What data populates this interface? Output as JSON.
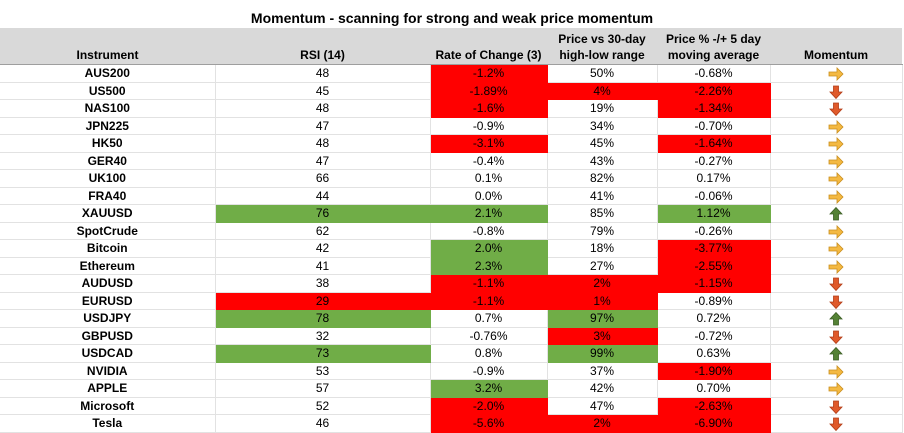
{
  "title": "Momentum - scanning for strong and weak price momentum",
  "headers": {
    "instrument": "Instrument",
    "rsi": "RSI (14)",
    "roc": "Rate of Change (3)",
    "range_l1": "Price vs 30-day",
    "range_l2": "high-low range",
    "ma_l1": "Price % -/+ 5 day",
    "ma_l2": "moving average",
    "momentum": "Momentum"
  },
  "colors": {
    "red": "#ff0000",
    "green": "#70ad47",
    "up_arrow": "#548235",
    "down_arrow": "#e05a2b",
    "right_arrow": "#f4b942"
  },
  "rows": [
    {
      "name": "AUS200",
      "rsi": "48",
      "roc": "-1.2%",
      "range": "50%",
      "ma": "-0.68%",
      "momentum": "right",
      "rsi_c": "",
      "roc_c": "red",
      "range_c": "",
      "ma_c": ""
    },
    {
      "name": "US500",
      "rsi": "45",
      "roc": "-1.89%",
      "range": "4%",
      "ma": "-2.26%",
      "momentum": "down",
      "rsi_c": "",
      "roc_c": "red",
      "range_c": "red",
      "ma_c": "red"
    },
    {
      "name": "NAS100",
      "rsi": "48",
      "roc": "-1.6%",
      "range": "19%",
      "ma": "-1.34%",
      "momentum": "down",
      "rsi_c": "",
      "roc_c": "red",
      "range_c": "",
      "ma_c": "red"
    },
    {
      "name": "JPN225",
      "rsi": "47",
      "roc": "-0.9%",
      "range": "34%",
      "ma": "-0.70%",
      "momentum": "right",
      "rsi_c": "",
      "roc_c": "",
      "range_c": "",
      "ma_c": ""
    },
    {
      "name": "HK50",
      "rsi": "48",
      "roc": "-3.1%",
      "range": "45%",
      "ma": "-1.64%",
      "momentum": "right",
      "rsi_c": "",
      "roc_c": "red",
      "range_c": "",
      "ma_c": "red"
    },
    {
      "name": "GER40",
      "rsi": "47",
      "roc": "-0.4%",
      "range": "43%",
      "ma": "-0.27%",
      "momentum": "right",
      "rsi_c": "",
      "roc_c": "",
      "range_c": "",
      "ma_c": ""
    },
    {
      "name": "UK100",
      "rsi": "66",
      "roc": "0.1%",
      "range": "82%",
      "ma": "0.17%",
      "momentum": "right",
      "rsi_c": "",
      "roc_c": "",
      "range_c": "",
      "ma_c": ""
    },
    {
      "name": "FRA40",
      "rsi": "44",
      "roc": "0.0%",
      "range": "41%",
      "ma": "-0.06%",
      "momentum": "right",
      "rsi_c": "",
      "roc_c": "",
      "range_c": "",
      "ma_c": ""
    },
    {
      "name": "XAUUSD",
      "rsi": "76",
      "roc": "2.1%",
      "range": "85%",
      "ma": "1.12%",
      "momentum": "up",
      "rsi_c": "green",
      "roc_c": "green",
      "range_c": "",
      "ma_c": "green"
    },
    {
      "name": "SpotCrude",
      "rsi": "62",
      "roc": "-0.8%",
      "range": "79%",
      "ma": "-0.26%",
      "momentum": "right",
      "rsi_c": "",
      "roc_c": "",
      "range_c": "",
      "ma_c": ""
    },
    {
      "name": "Bitcoin",
      "rsi": "42",
      "roc": "2.0%",
      "range": "18%",
      "ma": "-3.77%",
      "momentum": "right",
      "rsi_c": "",
      "roc_c": "green",
      "range_c": "",
      "ma_c": "red"
    },
    {
      "name": "Ethereum",
      "rsi": "41",
      "roc": "2.3%",
      "range": "27%",
      "ma": "-2.55%",
      "momentum": "right",
      "rsi_c": "",
      "roc_c": "green",
      "range_c": "",
      "ma_c": "red"
    },
    {
      "name": "AUDUSD",
      "rsi": "38",
      "roc": "-1.1%",
      "range": "2%",
      "ma": "-1.15%",
      "momentum": "down",
      "rsi_c": "",
      "roc_c": "red",
      "range_c": "red",
      "ma_c": "red"
    },
    {
      "name": "EURUSD",
      "rsi": "29",
      "roc": "-1.1%",
      "range": "1%",
      "ma": "-0.89%",
      "momentum": "down",
      "rsi_c": "red",
      "roc_c": "red",
      "range_c": "red",
      "ma_c": ""
    },
    {
      "name": "USDJPY",
      "rsi": "78",
      "roc": "0.7%",
      "range": "97%",
      "ma": "0.72%",
      "momentum": "up",
      "rsi_c": "green",
      "roc_c": "",
      "range_c": "green",
      "ma_c": ""
    },
    {
      "name": "GBPUSD",
      "rsi": "32",
      "roc": "-0.76%",
      "range": "3%",
      "ma": "-0.72%",
      "momentum": "down",
      "rsi_c": "",
      "roc_c": "",
      "range_c": "red",
      "ma_c": ""
    },
    {
      "name": "USDCAD",
      "rsi": "73",
      "roc": "0.8%",
      "range": "99%",
      "ma": "0.63%",
      "momentum": "up",
      "rsi_c": "green",
      "roc_c": "",
      "range_c": "green",
      "ma_c": ""
    },
    {
      "name": "NVIDIA",
      "rsi": "53",
      "roc": "-0.9%",
      "range": "37%",
      "ma": "-1.90%",
      "momentum": "right",
      "rsi_c": "",
      "roc_c": "",
      "range_c": "",
      "ma_c": "red"
    },
    {
      "name": "APPLE",
      "rsi": "57",
      "roc": "3.2%",
      "range": "42%",
      "ma": "0.70%",
      "momentum": "right",
      "rsi_c": "",
      "roc_c": "green",
      "range_c": "",
      "ma_c": ""
    },
    {
      "name": "Microsoft",
      "rsi": "52",
      "roc": "-2.0%",
      "range": "47%",
      "ma": "-2.63%",
      "momentum": "down",
      "rsi_c": "",
      "roc_c": "red",
      "range_c": "",
      "ma_c": "red"
    },
    {
      "name": "Tesla",
      "rsi": "46",
      "roc": "-5.6%",
      "range": "2%",
      "ma": "-6.90%",
      "momentum": "down",
      "rsi_c": "",
      "roc_c": "red",
      "range_c": "red",
      "ma_c": "red"
    }
  ]
}
